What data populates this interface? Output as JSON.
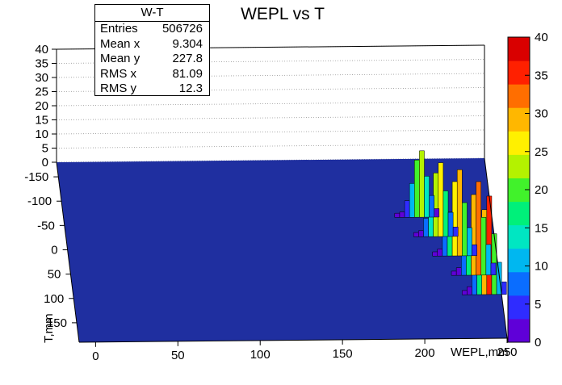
{
  "chart_data": {
    "type": "heatmap",
    "title": "WEPL vs T",
    "xlabel": "WEPL,mm",
    "ylabel": "T,mm",
    "zlabel": "",
    "x_range": [
      -10,
      250
    ],
    "y_range": [
      -180,
      190
    ],
    "z_range": [
      0,
      40
    ],
    "x_ticks": [
      "0",
      "50",
      "100",
      "150",
      "200",
      "250"
    ],
    "y_ticks": [
      "-150",
      "-100",
      "-50",
      "0",
      "50",
      "100",
      "150"
    ],
    "z_ticks": [
      "0",
      "5",
      "10",
      "15",
      "20",
      "25",
      "30",
      "35",
      "40"
    ],
    "palette_ticks": [
      "0",
      "5",
      "10",
      "15",
      "20",
      "25",
      "30",
      "35",
      "40"
    ],
    "grid": true,
    "statistics": {
      "name": "W-T",
      "rows": [
        {
          "label": "Entries",
          "value": "506726"
        },
        {
          "label": "Mean x",
          "value": "9.304"
        },
        {
          "label": "Mean y",
          "value": "227.8"
        },
        {
          "label": "RMS x",
          "value": "81.09"
        },
        {
          "label": "RMS y",
          "value": "12.3"
        }
      ]
    },
    "ridges": [
      {
        "wepl": 205,
        "t": -60,
        "max": 27
      },
      {
        "wepl": 215,
        "t": -20,
        "max": 30
      },
      {
        "wepl": 225,
        "t": 20,
        "max": 35
      },
      {
        "wepl": 235,
        "t": 60,
        "max": 38
      },
      {
        "wepl": 240,
        "t": 100,
        "max": 40
      }
    ],
    "colors": {
      "background_fill": "#1f2fa0",
      "frame": "#000000",
      "palette": [
        "#5f00d8",
        "#2f2cff",
        "#0a6dff",
        "#00b7f0",
        "#00e6c2",
        "#00f07a",
        "#41f22b",
        "#b4f200",
        "#fff000",
        "#ffb700",
        "#ff6e00",
        "#ff2000",
        "#d90000"
      ]
    }
  }
}
